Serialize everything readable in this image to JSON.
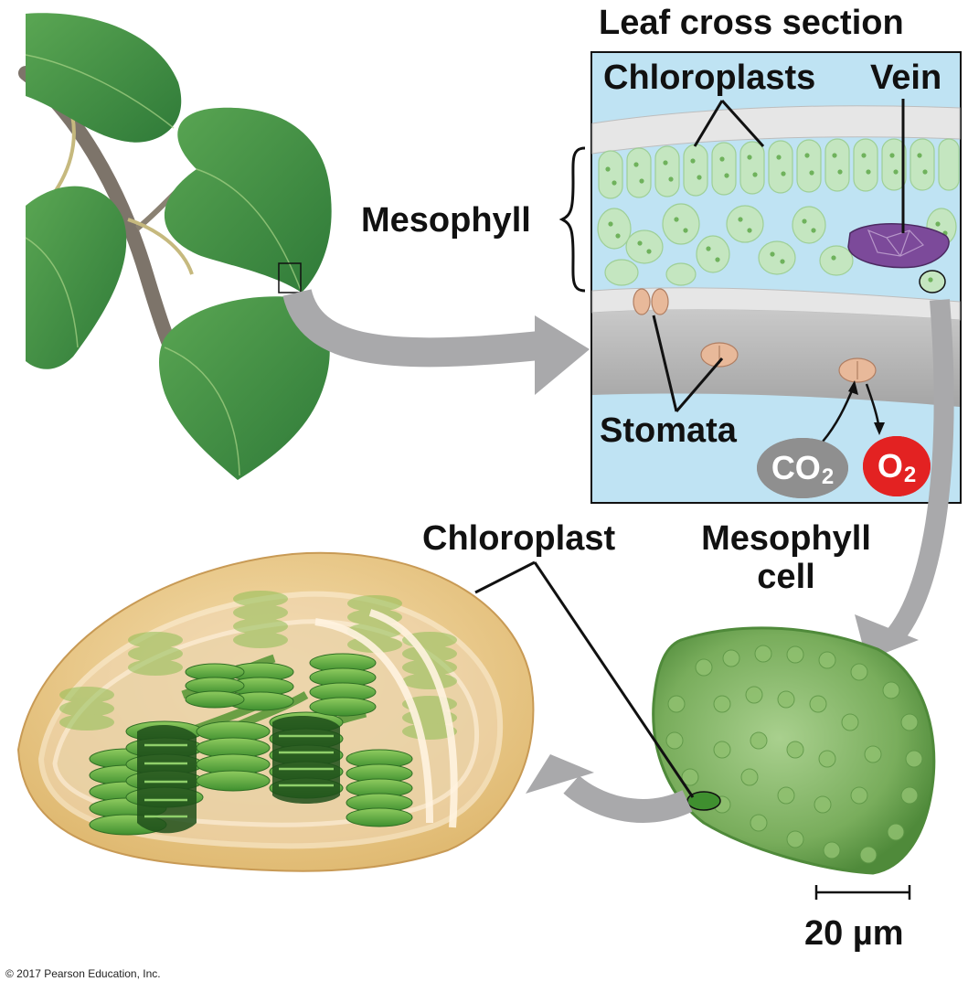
{
  "labels": {
    "title": "Leaf cross section",
    "chloroplasts": "Chloroplasts",
    "vein": "Vein",
    "mesophyll": "Mesophyll",
    "stomata": "Stomata",
    "chloroplast": "Chloroplast",
    "mesophyll_cell_line1": "Mesophyll",
    "mesophyll_cell_line2": "cell",
    "scale": "20 µm",
    "copyright": "© 2017 Pearson Education, Inc."
  },
  "gases": {
    "co2": {
      "main": "CO",
      "sub": "2"
    },
    "o2": {
      "main": "O",
      "sub": "2"
    }
  },
  "colors": {
    "panel_bg": "#bfe3f3",
    "leaf_green": "#3f8f46",
    "chloroplast_green": "#7cc36a",
    "vein_purple": "#7c4a9a",
    "stomata_tan": "#e8b99a",
    "epidermis_gray": "#d9d9d9",
    "arrow_gray": "#a9a9ab",
    "co2_gray": "#8f8f8f",
    "o2_red": "#e32222",
    "envelope_tan": "#e8c78a"
  }
}
